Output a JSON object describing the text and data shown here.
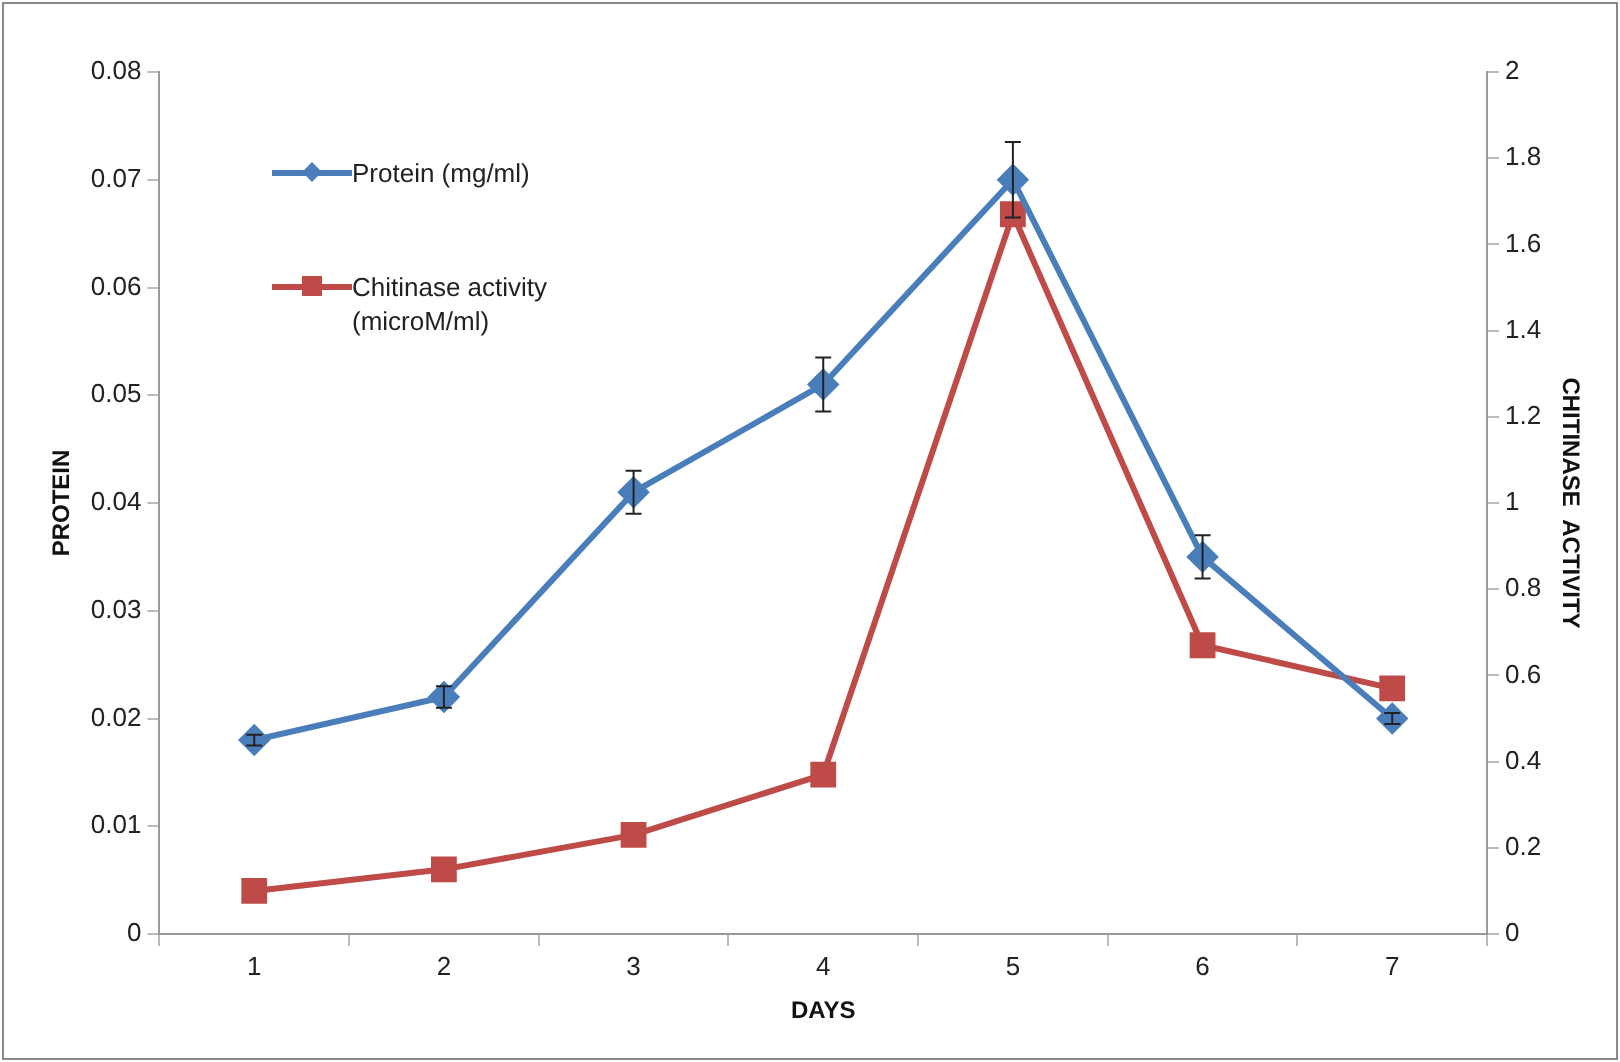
{
  "chart_data": {
    "type": "line",
    "xlabel": "DAYS",
    "ylabel": "PROTEIN",
    "y2label": "CHITINASE  ACTIVITY",
    "categories": [
      "1",
      "2",
      "3",
      "4",
      "5",
      "6",
      "7"
    ],
    "series": [
      {
        "name": "Protein (mg/ml)",
        "color": "#4a7ebb",
        "marker": "diamond",
        "values": [
          0.018,
          0.022,
          0.041,
          0.051,
          0.07,
          0.035,
          0.02
        ],
        "errors": [
          0.0005,
          0.001,
          0.002,
          0.0025,
          0.0035,
          0.002,
          0.0005
        ]
      },
      {
        "name": "Chitinase activity (microM/ml)",
        "color": "#be4b48",
        "marker": "square",
        "axis": "y2",
        "values": [
          0.1,
          0.15,
          0.23,
          0.37,
          1.67,
          0.67,
          0.57
        ]
      }
    ],
    "ylim": [
      0,
      0.08
    ],
    "yticks": [
      0,
      0.01,
      0.02,
      0.03,
      0.04,
      0.05,
      0.06,
      0.07,
      0.08
    ],
    "y2lim": [
      0,
      2
    ],
    "y2ticks": [
      0,
      0.2,
      0.4,
      0.6,
      0.8,
      1,
      1.2,
      1.4,
      1.6,
      1.8,
      2
    ],
    "grid": false,
    "legend": "top left",
    "line_style": "solid"
  }
}
